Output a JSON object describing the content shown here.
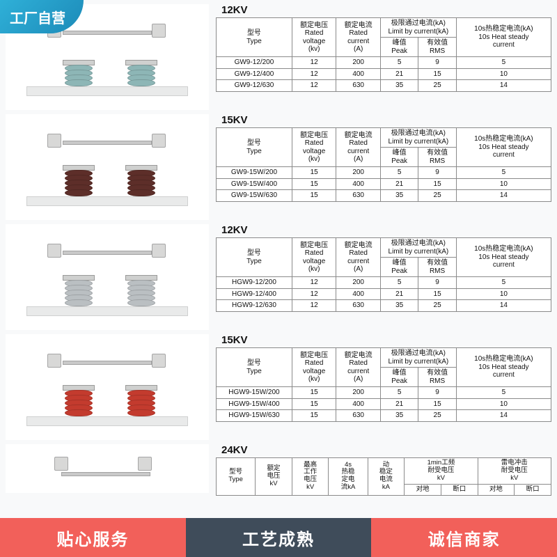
{
  "badge": "工厂自营",
  "watermark": "",
  "footer": {
    "s1": "贴心服务",
    "s2": "工艺成熟",
    "s3": "诚信商家"
  },
  "headers_std": {
    "type_zh": "型号",
    "type_en": "Type",
    "volt_zh": "额定电压",
    "volt_en1": "Rated",
    "volt_en2": "voltage",
    "volt_unit": "(kv)",
    "curr_zh": "额定电流",
    "curr_en1": "Rated",
    "curr_en2": "current",
    "curr_unit": "(A)",
    "limit_zh": "极限通过电流(kA)",
    "limit_en": "Limit by current(kA)",
    "peak_zh": "峰值",
    "peak_en": "Peak",
    "rms_zh": "有效值",
    "rms_en": "RMS",
    "heat_zh": "10s热稳定电流(kA)",
    "heat_en1": "10s Heat steady",
    "heat_en2": "current"
  },
  "sections": [
    {
      "title": "12KV",
      "photo": {
        "rib_color": "#8db6b6",
        "rib_count": 4
      },
      "rows": [
        {
          "m": "GW9-12/200",
          "v": "12",
          "c": "200",
          "p": "5",
          "r": "9",
          "h": "5"
        },
        {
          "m": "GW9-12/400",
          "v": "12",
          "c": "400",
          "p": "21",
          "r": "15",
          "h": "10"
        },
        {
          "m": "GW9-12/630",
          "v": "12",
          "c": "630",
          "p": "35",
          "r": "25",
          "h": "14"
        }
      ]
    },
    {
      "title": "15KV",
      "photo": {
        "rib_color": "#5d2e29",
        "rib_count": 5
      },
      "rows": [
        {
          "m": "GW9-15W/200",
          "v": "15",
          "c": "200",
          "p": "5",
          "r": "9",
          "h": "5"
        },
        {
          "m": "GW9-15W/400",
          "v": "15",
          "c": "400",
          "p": "21",
          "r": "15",
          "h": "10"
        },
        {
          "m": "GW9-15W/630",
          "v": "15",
          "c": "630",
          "p": "35",
          "r": "25",
          "h": "14"
        }
      ]
    },
    {
      "title": "12KV",
      "photo": {
        "rib_color": "#babfc2",
        "rib_count": 5
      },
      "rows": [
        {
          "m": "HGW9-12/200",
          "v": "12",
          "c": "200",
          "p": "5",
          "r": "9",
          "h": "5"
        },
        {
          "m": "HGW9-12/400",
          "v": "12",
          "c": "400",
          "p": "21",
          "r": "15",
          "h": "10"
        },
        {
          "m": "HGW9-12/630",
          "v": "12",
          "c": "630",
          "p": "35",
          "r": "25",
          "h": "14"
        }
      ]
    },
    {
      "title": "15KV",
      "photo": {
        "rib_color": "#c33b2e",
        "rib_count": 5
      },
      "rows": [
        {
          "m": "HGW9-15W/200",
          "v": "15",
          "c": "200",
          "p": "5",
          "r": "9",
          "h": "5"
        },
        {
          "m": "HGW9-15W/400",
          "v": "15",
          "c": "400",
          "p": "21",
          "r": "15",
          "h": "10"
        },
        {
          "m": "HGW9-15W/630",
          "v": "15",
          "c": "630",
          "p": "35",
          "r": "25",
          "h": "14"
        }
      ]
    }
  ],
  "section24": {
    "title": "24KV",
    "photo": {
      "rib_color": "#babfc2",
      "rib_count": 3
    },
    "head": {
      "type_zh": "型号",
      "type_en": "Type",
      "rated_zh": "额定",
      "rated_en": "电压",
      "rated_unit": "kV",
      "max_zh": "最高",
      "max_en": "工作",
      "max_l3": "电压",
      "max_unit": "kV",
      "hs_zh": "4s",
      "hs_l2": "热稳",
      "hs_l3": "定电",
      "hs_l4": "流kA",
      "dyn_zh": "动",
      "dyn_l2": "稳定",
      "dyn_l3": "电流",
      "dyn_unit": "kA",
      "pf_zh": "1min工频",
      "pf_l2": "耐受电压",
      "pf_unit": "kV",
      "li_zh": "雷电冲击",
      "li_l2": "耐受电压",
      "li_unit": "kV",
      "g": "对地",
      "b": "断口"
    }
  }
}
